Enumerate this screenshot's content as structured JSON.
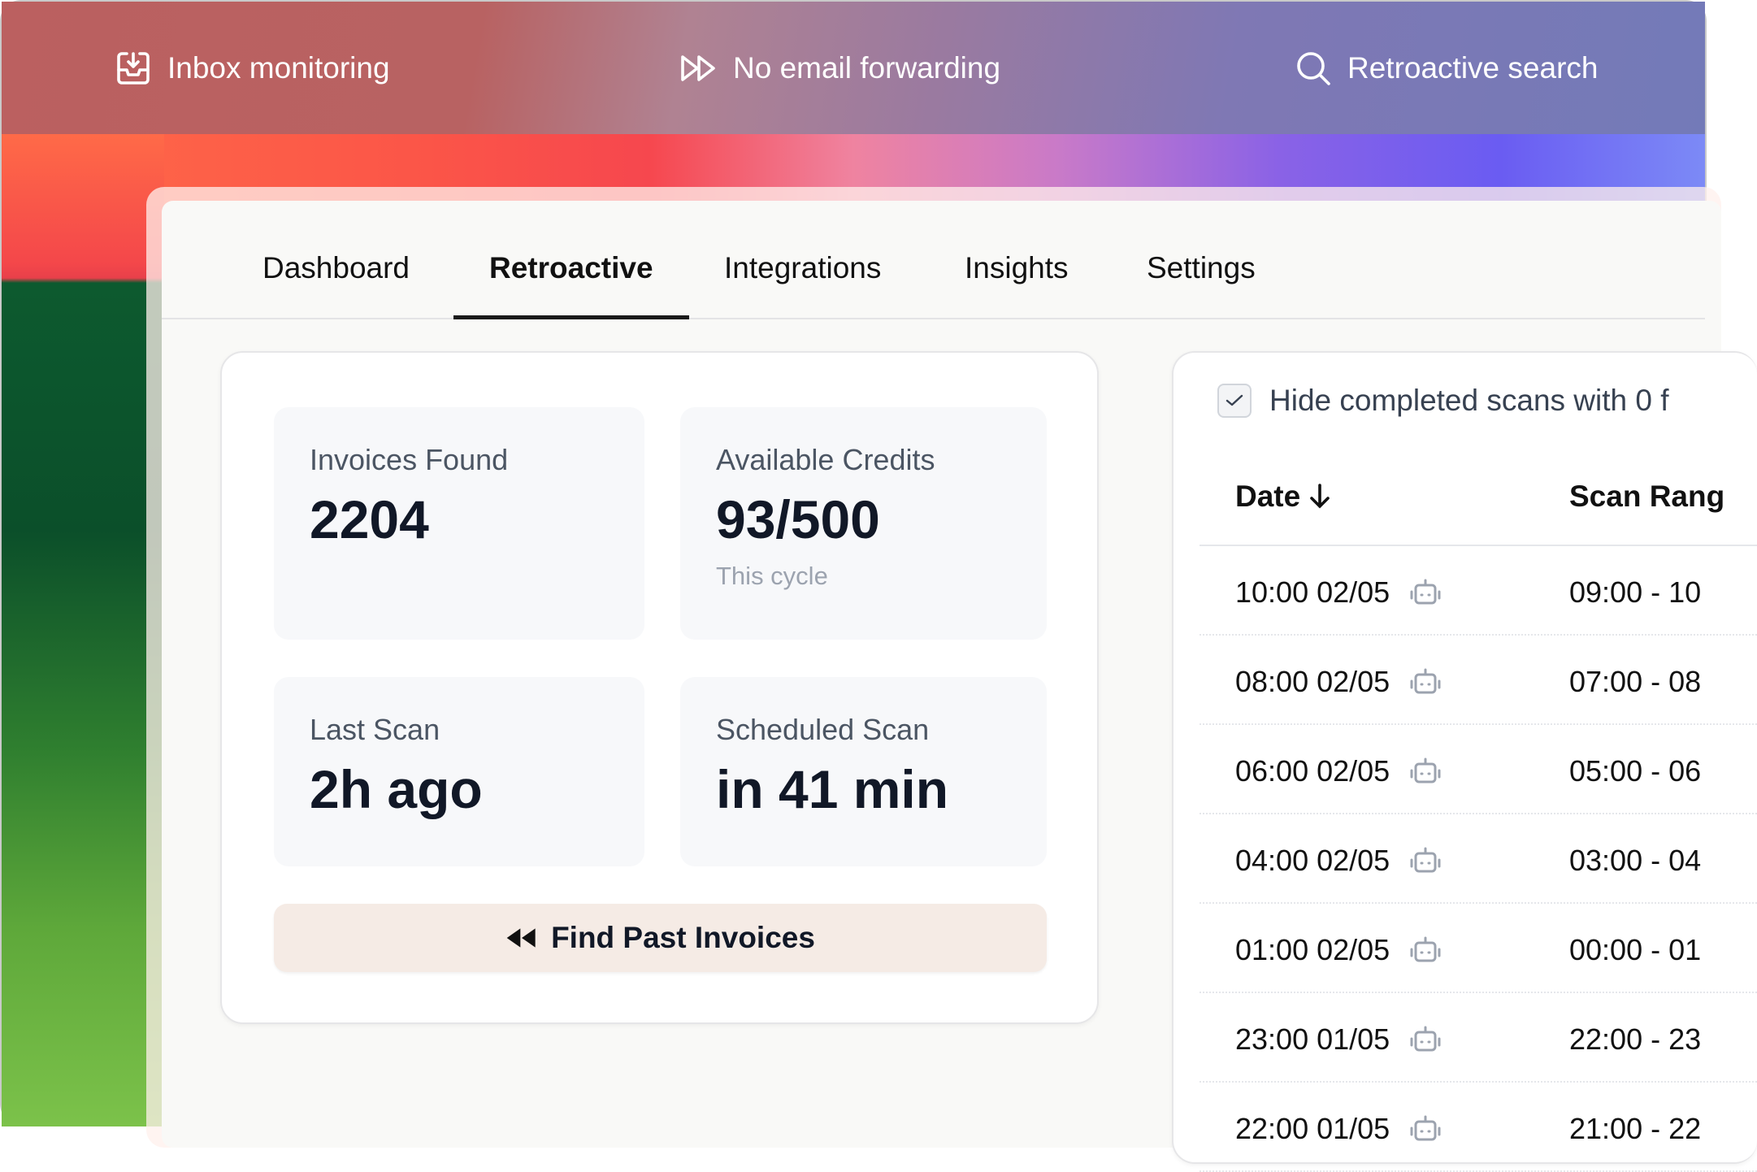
{
  "features": [
    {
      "icon": "inbox-download-icon",
      "label": "Inbox monitoring"
    },
    {
      "icon": "fast-forward-icon",
      "label": "No email forwarding"
    },
    {
      "icon": "search-icon",
      "label": "Retroactive search"
    }
  ],
  "tabs": [
    {
      "label": "Dashboard",
      "active": false
    },
    {
      "label": "Retroactive",
      "active": true
    },
    {
      "label": "Integrations",
      "active": false
    },
    {
      "label": "Insights",
      "active": false
    },
    {
      "label": "Settings",
      "active": false
    }
  ],
  "stats": {
    "invoices_found": {
      "label": "Invoices Found",
      "value": "2204"
    },
    "available_credits": {
      "label": "Available Credits",
      "value": "93/500",
      "sub": "This cycle"
    },
    "last_scan": {
      "label": "Last Scan",
      "value": "2h ago"
    },
    "scheduled_scan": {
      "label": "Scheduled Scan",
      "value": "in 41 min"
    }
  },
  "find_button": {
    "label": "Find Past Invoices",
    "icon": "rewind-icon"
  },
  "scans": {
    "hide_completed": {
      "label": "Hide completed scans with 0 f",
      "checked": true
    },
    "columns": [
      "Date",
      "Scan Rang"
    ],
    "sort_icon": "arrow-down-icon",
    "rows": [
      {
        "date": "10:00 02/05",
        "range": "09:00 - 10",
        "icon": "robot-icon"
      },
      {
        "date": "08:00 02/05",
        "range": "07:00 - 08",
        "icon": "robot-icon"
      },
      {
        "date": "06:00 02/05",
        "range": "05:00 - 06",
        "icon": "robot-icon"
      },
      {
        "date": "04:00 02/05",
        "range": "03:00 - 04",
        "icon": "robot-icon"
      },
      {
        "date": "01:00 02/05",
        "range": "00:00 - 01",
        "icon": "robot-icon"
      },
      {
        "date": "23:00 01/05",
        "range": "22:00 - 23",
        "icon": "robot-icon"
      },
      {
        "date": "22:00 01/05",
        "range": "21:00 - 22",
        "icon": "robot-icon"
      }
    ]
  },
  "colors": {
    "button_bg": "#f5ebe5",
    "tile_bg": "#f7f8fa",
    "active_tab_underline": "#1a1a1a"
  }
}
